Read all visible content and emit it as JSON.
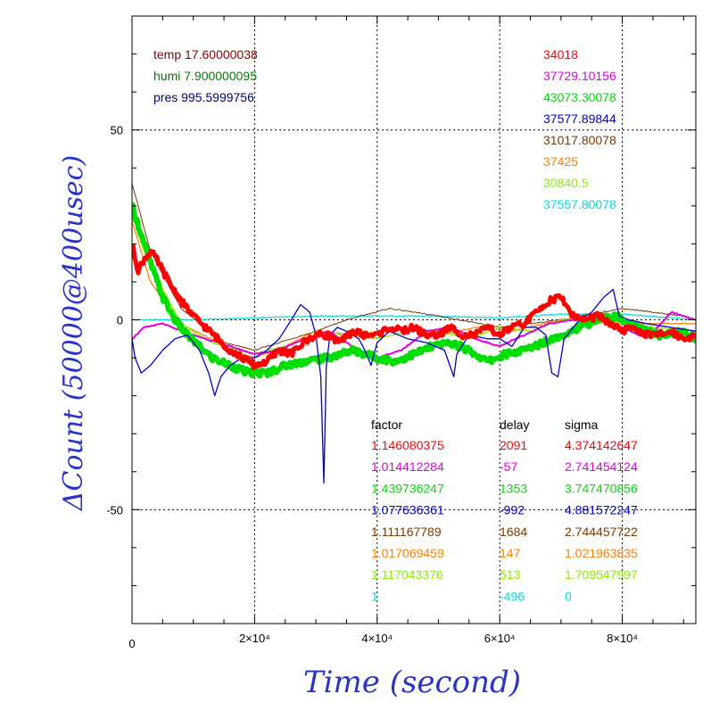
{
  "chart_data": {
    "type": "line",
    "xlabel": "Time (second)",
    "ylabel": "ΔCount (50000@400usec)",
    "xlim": [
      0,
      92000
    ],
    "ylim": [
      -80,
      80
    ],
    "x_ticks": [
      {
        "v": 0,
        "label": "0"
      },
      {
        "v": 20000,
        "label": "2×10⁴"
      },
      {
        "v": 40000,
        "label": "4×10⁴"
      },
      {
        "v": 60000,
        "label": "6×10⁴"
      },
      {
        "v": 80000,
        "label": "8×10⁴"
      }
    ],
    "y_ticks": [
      {
        "v": 50,
        "label": "50"
      },
      {
        "v": 0,
        "label": "0"
      },
      {
        "v": -50,
        "label": "-50"
      }
    ],
    "env": [
      {
        "text": "temp 17.60000038",
        "color": "#8b0000"
      },
      {
        "text": "humi 7.900000095",
        "color": "#007a00"
      },
      {
        "text": "pres 995.5999756",
        "color": "#00007a"
      }
    ],
    "means": [
      {
        "text": "34018",
        "color": "#ff0000"
      },
      {
        "text": "37729.10156",
        "color": "#e000e0"
      },
      {
        "text": "43073.30078",
        "color": "#00dd00"
      },
      {
        "text": "37577.89844",
        "color": "#0000cc"
      },
      {
        "text": "31017.80078",
        "color": "#7a3a00"
      },
      {
        "text": "37425",
        "color": "#ff7f00"
      },
      {
        "text": "30840.5",
        "color": "#88ee00"
      },
      {
        "text": "37557.80078",
        "color": "#00dddd"
      }
    ],
    "table_headers": [
      "factor",
      "delay",
      "sigma"
    ],
    "table": [
      {
        "factor": "1.146080375",
        "delay": "2091",
        "sigma": "4.374142647",
        "color": "#ff0000"
      },
      {
        "factor": "1.014412284",
        "delay": "-57",
        "sigma": "2.741454124",
        "color": "#e000e0"
      },
      {
        "factor": "1.439736247",
        "delay": "1353",
        "sigma": "3.747470856",
        "color": "#00dd00"
      },
      {
        "factor": "1.077636361",
        "delay": "-992",
        "sigma": "4.881572247",
        "color": "#0000cc"
      },
      {
        "factor": "1.111167789",
        "delay": "1684",
        "sigma": "2.744457722",
        "color": "#7a3a00"
      },
      {
        "factor": "1.017069459",
        "delay": "147",
        "sigma": "1.021963835",
        "color": "#ff7f00"
      },
      {
        "factor": "1.117043376",
        "delay": "513",
        "sigma": "1.709547997",
        "color": "#88ee00"
      },
      {
        "factor": "1",
        "delay": "-496",
        "sigma": "0",
        "color": "#00dddd"
      }
    ],
    "series": [
      {
        "color": "#00dddd",
        "width": 1.2,
        "x": [
          0,
          10000,
          20000,
          30000,
          40000,
          50000,
          60000,
          70000,
          80000,
          92000
        ],
        "y": [
          0,
          0,
          0.5,
          1,
          1,
          1,
          0.5,
          1.5,
          1.5,
          0
        ]
      },
      {
        "color": "#7a3a00",
        "width": 1,
        "x": [
          0,
          3000,
          8000,
          15000,
          20000,
          30000,
          35000,
          42000,
          50000,
          60000,
          70000,
          80000,
          90000,
          92000
        ],
        "y": [
          36,
          18,
          3,
          -6,
          -8,
          -3,
          0,
          3,
          1,
          -2,
          0,
          3,
          1,
          0
        ]
      },
      {
        "color": "#ff7f00",
        "width": 1.2,
        "x": [
          0,
          3000,
          8000,
          14000,
          18000,
          20000,
          25000,
          30000,
          37000,
          44000,
          50000,
          56000,
          62000,
          70000,
          76000,
          82000,
          90000,
          92000
        ],
        "y": [
          26,
          10,
          -1,
          -6,
          -9,
          -10,
          -7,
          -3,
          -4,
          -2,
          -4,
          -2,
          -3,
          0,
          1,
          -1,
          -1,
          -1
        ]
      },
      {
        "color": "#88ee00",
        "width": 1.5,
        "x": [
          0,
          2000,
          5000,
          8000,
          10000,
          13000,
          17000,
          20000,
          25000,
          30000,
          35000,
          40000,
          45000,
          50000,
          55000,
          60000,
          65000,
          70000,
          75000,
          80000,
          85000,
          92000
        ],
        "y": [
          28,
          18,
          8,
          -1,
          -3,
          -6,
          -8,
          -9,
          -7,
          -4,
          -4,
          -5,
          -3,
          -3,
          -5,
          -2,
          -3,
          0,
          1,
          -1,
          -2,
          -3
        ]
      },
      {
        "color": "#e000e0",
        "width": 2,
        "x": [
          0,
          2000,
          5000,
          8000,
          12000,
          16000,
          20000,
          24000,
          28000,
          32000,
          36000,
          40000,
          44000,
          48000,
          52000,
          56000,
          60000,
          64000,
          68000,
          72000,
          76000,
          80000,
          84000,
          88000,
          92000
        ],
        "y": [
          -5,
          -2,
          -1,
          -3,
          -5,
          -7,
          -9,
          -8,
          -5,
          -3,
          -7,
          -10,
          -8,
          -3,
          -2,
          -5,
          -7,
          -4,
          -1,
          0,
          0,
          -2,
          -5,
          2,
          0
        ]
      },
      {
        "color": "#00dd00",
        "width": 6,
        "x": [
          0,
          1000,
          3000,
          5000,
          7000,
          9000,
          11000,
          13000,
          16000,
          19000,
          22000,
          25000,
          28000,
          32000,
          36000,
          40000,
          43000,
          46000,
          49000,
          52000,
          55000,
          58000,
          61000,
          64000,
          67000,
          70000,
          73000,
          76000,
          79000,
          82000,
          86000,
          90000,
          92000
        ],
        "y": [
          30,
          25,
          15,
          6,
          0,
          -4,
          -7,
          -10,
          -12,
          -14,
          -14,
          -12,
          -11,
          -10,
          -8,
          -10,
          -11,
          -9,
          -7,
          -6,
          -8,
          -11,
          -9,
          -8,
          -6,
          -4,
          -2,
          0,
          1,
          -2,
          -4,
          -3,
          -5
        ]
      },
      {
        "color": "#0000cc",
        "width": 1.3,
        "x": [
          0,
          500,
          1500,
          3000,
          5000,
          7000,
          9000,
          11000,
          12500,
          13500,
          14500,
          16000,
          18000,
          20000,
          22000,
          24000,
          26000,
          27500,
          29000,
          30000,
          30800,
          31300,
          31700,
          32300,
          33500,
          35000,
          37000,
          38000,
          39000,
          40000,
          42000,
          45000,
          48000,
          51000,
          52500,
          53000,
          55000,
          58000,
          60000,
          62000,
          64000,
          66000,
          67500,
          68500,
          69500,
          70500,
          71500,
          73000,
          75000,
          77000,
          78500,
          79500,
          81000,
          84000,
          88000,
          92000
        ],
        "y": [
          -5,
          -10,
          -14,
          -12,
          -8,
          -5,
          -4,
          -8,
          -14,
          -20,
          -15,
          -12,
          -10,
          -10,
          -8,
          -5,
          0,
          4,
          2,
          -4,
          -15,
          -43,
          -12,
          -4,
          -2,
          -3,
          -5,
          -8,
          -12,
          -6,
          -3,
          -5,
          -6,
          -8,
          -15,
          -9,
          -4,
          -5,
          -5,
          -7,
          -2,
          -2,
          -4,
          -14,
          -15,
          -5,
          -3,
          0,
          2,
          6,
          8,
          1,
          0,
          -1,
          -2,
          -3
        ]
      },
      {
        "color": "#ff0000",
        "width": 5,
        "x": [
          0,
          1000,
          2000,
          3000,
          4000,
          6000,
          8000,
          10000,
          12000,
          14000,
          16000,
          18000,
          20000,
          22000,
          24000,
          26000,
          28000,
          30000,
          32000,
          34000,
          36000,
          38000,
          40000,
          42000,
          44000,
          46000,
          48000,
          50000,
          52000,
          54000,
          56000,
          58000,
          60000,
          62000,
          64000,
          66000,
          68000,
          70000,
          72000,
          74000,
          76000,
          78000,
          80000,
          82000,
          84000,
          86000,
          88000,
          90000,
          92000
        ],
        "y": [
          20,
          13,
          16,
          18,
          16,
          10,
          5,
          1,
          -2,
          -5,
          -8,
          -10,
          -12,
          -11,
          -8,
          -9,
          -6,
          -4,
          -4,
          -6,
          -3,
          -4,
          -4,
          -2,
          -3,
          -2,
          -4,
          -4,
          -2,
          -4,
          -4,
          -2,
          -4,
          -2,
          -1,
          2,
          5,
          6,
          1,
          0,
          1,
          -1,
          -3,
          -2,
          -4,
          -4,
          -3,
          -5,
          -4
        ]
      }
    ]
  }
}
